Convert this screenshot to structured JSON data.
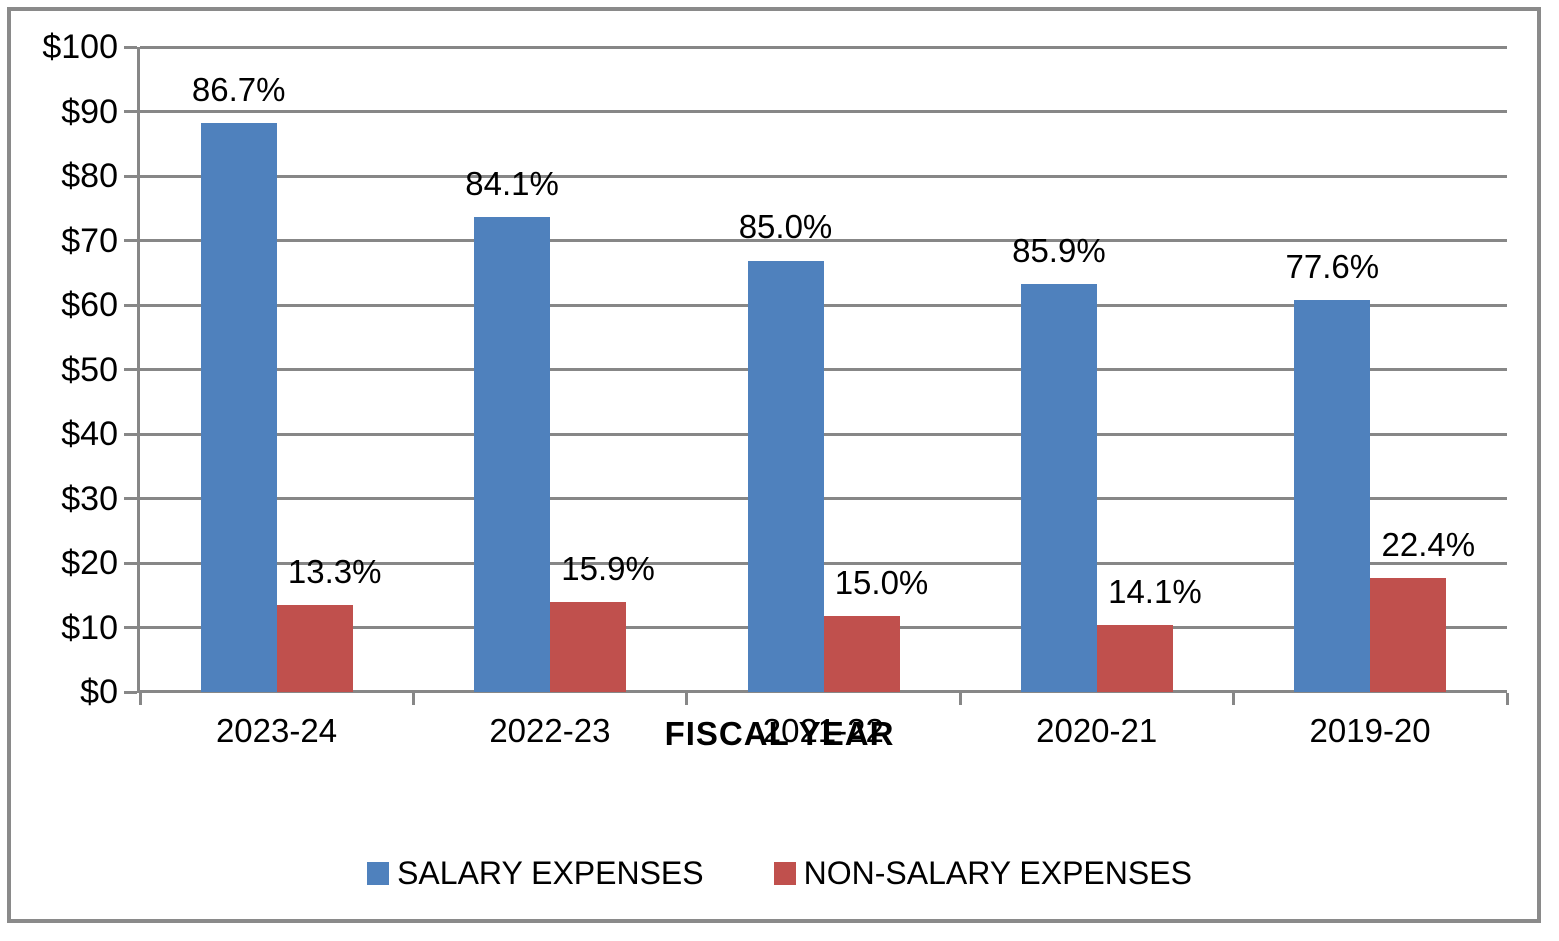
{
  "chart_data": {
    "type": "bar",
    "title": "",
    "categories": [
      "2023-24",
      "2022-23",
      "2021-22",
      "2020-21",
      "2019-20"
    ],
    "series": [
      {
        "name": "SALARY EXPENSES",
        "color": "#4f81bd",
        "values": [
          88.2,
          73.7,
          66.9,
          63.2,
          60.8
        ],
        "labels": [
          "86.7%",
          "84.1%",
          "85.0%",
          "85.9%",
          "77.6%"
        ]
      },
      {
        "name": "NON-SALARY EXPENSES",
        "color": "#c0504d",
        "values": [
          13.5,
          13.9,
          11.8,
          10.4,
          17.6
        ],
        "labels": [
          "13.3%",
          "15.9%",
          "15.0%",
          "14.1%",
          "22.4%"
        ]
      }
    ],
    "xlabel": "FISCAL YEAR",
    "ylabel": "",
    "ylim": [
      0,
      100
    ],
    "ytick_step": 10,
    "ytick_labels": [
      "$0",
      "$10",
      "$20",
      "$30",
      "$40",
      "$50",
      "$60",
      "$70",
      "$80",
      "$90",
      "$100"
    ],
    "grid": true,
    "legend_position": "bottom",
    "axis_color": "#878787",
    "background_color": "#ffffff"
  }
}
